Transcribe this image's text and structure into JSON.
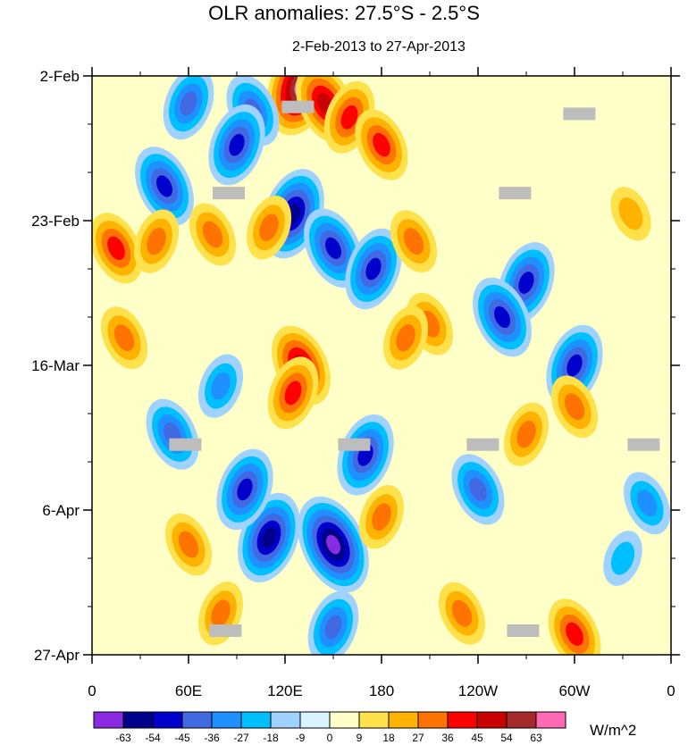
{
  "chart_data": {
    "type": "heatmap",
    "title": "OLR anomalies: 27.5°S - 2.5°S",
    "subtitle": "2-Feb-2013 to 27-Apr-2013",
    "units": "W/m^2",
    "x_ticks": [
      "0",
      "60E",
      "120E",
      "180",
      "120W",
      "60W",
      "0"
    ],
    "x_tick_lon": [
      0,
      60,
      120,
      180,
      240,
      300,
      360
    ],
    "y_ticks": [
      "2-Feb",
      "23-Feb",
      "16-Mar",
      "6-Apr",
      "27-Apr"
    ],
    "y_tick_day": [
      0,
      21,
      42,
      63,
      84
    ],
    "xlim": [
      0,
      360
    ],
    "ylim_days": [
      0,
      84
    ],
    "colorbar": {
      "labels": [
        "-63",
        "-54",
        "-45",
        "-36",
        "-27",
        "-18",
        "-9",
        "0",
        "9",
        "18",
        "27",
        "36",
        "45",
        "54",
        "63"
      ],
      "colors": [
        "#8a2be2",
        "#00008b",
        "#0000cd",
        "#4169e1",
        "#1e90ff",
        "#00bfff",
        "#a0d2ff",
        "#d8f4ff",
        "#ffffc8",
        "#ffe14b",
        "#ffb300",
        "#ff7300",
        "#ff0000",
        "#c80000",
        "#a52a2a",
        "#ff69b4"
      ]
    },
    "anomaly_cells": [
      {
        "lon": 130,
        "day": 1.5,
        "value": 70
      },
      {
        "lon": 145,
        "day": 4,
        "value": 50
      },
      {
        "lon": 160,
        "day": 6,
        "value": 40
      },
      {
        "lon": 180,
        "day": 10,
        "value": 36
      },
      {
        "lon": 60,
        "day": 4,
        "value": -36
      },
      {
        "lon": 100,
        "day": 5,
        "value": -36
      },
      {
        "lon": 90,
        "day": 10,
        "value": -45
      },
      {
        "lon": 45,
        "day": 16,
        "value": -45
      },
      {
        "lon": 125,
        "day": 20,
        "value": -54
      },
      {
        "lon": 150,
        "day": 25,
        "value": -45
      },
      {
        "lon": 175,
        "day": 28,
        "value": -45
      },
      {
        "lon": 15,
        "day": 25,
        "value": 36
      },
      {
        "lon": 40,
        "day": 24,
        "value": 27
      },
      {
        "lon": 75,
        "day": 23,
        "value": 27
      },
      {
        "lon": 110,
        "day": 22,
        "value": 27
      },
      {
        "lon": 200,
        "day": 24,
        "value": 27
      },
      {
        "lon": 270,
        "day": 30,
        "value": -45
      },
      {
        "lon": 255,
        "day": 35,
        "value": -45
      },
      {
        "lon": 300,
        "day": 42,
        "value": -45
      },
      {
        "lon": 130,
        "day": 42,
        "value": 45
      },
      {
        "lon": 125,
        "day": 46,
        "value": 36
      },
      {
        "lon": 210,
        "day": 36,
        "value": 27
      },
      {
        "lon": 195,
        "day": 38,
        "value": 27
      },
      {
        "lon": 20,
        "day": 38,
        "value": 27
      },
      {
        "lon": 80,
        "day": 45,
        "value": -27
      },
      {
        "lon": 50,
        "day": 52,
        "value": -36
      },
      {
        "lon": 170,
        "day": 55,
        "value": -45
      },
      {
        "lon": 240,
        "day": 60,
        "value": -36
      },
      {
        "lon": 270,
        "day": 52,
        "value": 27
      },
      {
        "lon": 300,
        "day": 48,
        "value": 27
      },
      {
        "lon": 110,
        "day": 67,
        "value": -54
      },
      {
        "lon": 150,
        "day": 68,
        "value": -63
      },
      {
        "lon": 95,
        "day": 60,
        "value": -45
      },
      {
        "lon": 60,
        "day": 68,
        "value": 27
      },
      {
        "lon": 180,
        "day": 64,
        "value": 27
      },
      {
        "lon": 300,
        "day": 81,
        "value": 36
      },
      {
        "lon": 150,
        "day": 80,
        "value": -36
      },
      {
        "lon": 230,
        "day": 78,
        "value": 27
      },
      {
        "lon": 80,
        "day": 78,
        "value": 27
      },
      {
        "lon": 345,
        "day": 62,
        "value": -27
      },
      {
        "lon": 330,
        "day": 70,
        "value": -18
      },
      {
        "lon": 335,
        "day": 20,
        "value": 18
      }
    ],
    "missing_blocks": [
      {
        "lon": 128,
        "day": 4.5
      },
      {
        "lon": 303,
        "day": 5.5
      },
      {
        "lon": 85,
        "day": 17
      },
      {
        "lon": 263,
        "day": 17
      },
      {
        "lon": 58,
        "day": 53.5
      },
      {
        "lon": 163,
        "day": 53.5
      },
      {
        "lon": 243,
        "day": 53.5
      },
      {
        "lon": 343,
        "day": 53.5
      },
      {
        "lon": 83,
        "day": 80.5
      },
      {
        "lon": 268,
        "day": 80.5
      }
    ]
  }
}
